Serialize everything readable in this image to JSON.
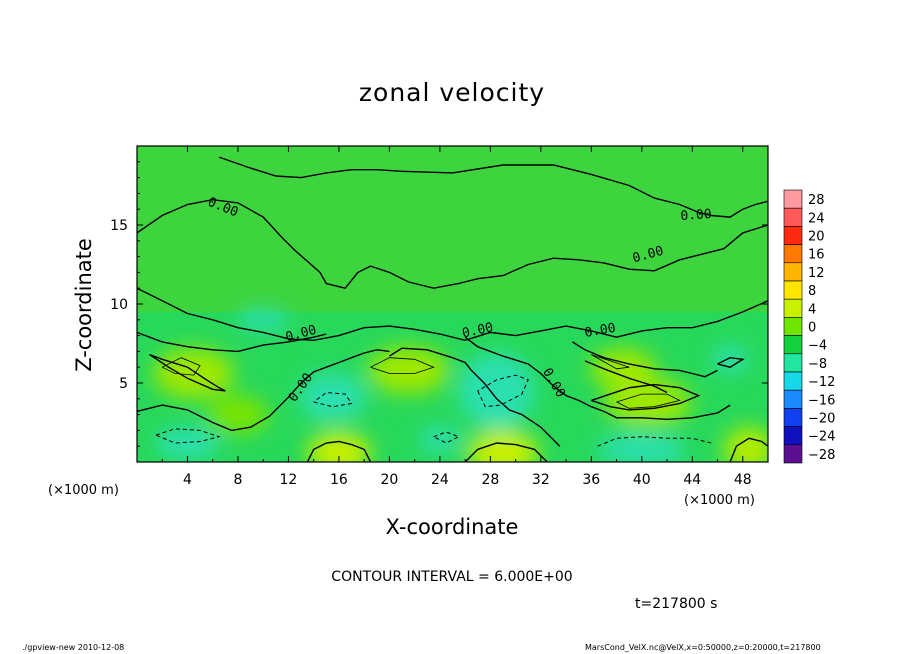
{
  "chart_data": {
    "type": "heatmap",
    "title": "zonal velocity",
    "xlabel": "X-coordinate",
    "ylabel": "Z-coordinate",
    "x_scale_label": "(×1000 m)",
    "x_ticks": [
      4,
      8,
      12,
      16,
      20,
      24,
      28,
      32,
      36,
      40,
      44,
      48
    ],
    "y_ticks": [
      5,
      10,
      15
    ],
    "xlim": [
      0,
      50
    ],
    "ylim": [
      0,
      20
    ],
    "colorbar": {
      "levels": [
        28,
        24,
        20,
        16,
        12,
        8,
        4,
        0,
        -4,
        -8,
        -12,
        -16,
        -20,
        -24,
        -28
      ],
      "colors": [
        "#ff9aa0",
        "#ff5a5a",
        "#ff2a10",
        "#ff7800",
        "#ffb400",
        "#ffe600",
        "#c8f000",
        "#6ee600",
        "#14d23c",
        "#20e6a0",
        "#18d8e8",
        "#1a8cff",
        "#1040f0",
        "#1010c0",
        "#5a1090"
      ]
    },
    "contour_labels": [
      "0.00",
      "0.00",
      "0.00",
      "0.00",
      "0.00",
      "0.00",
      "0.00",
      "0.00"
    ],
    "contour_interval": "CONTOUR INTERVAL = 6.000E+00",
    "time": "t=217800 s"
  },
  "footer": {
    "left": "./gpview-new  2010-12-08",
    "right": "MarsCond_VelX.nc@VelX,x=0:50000,z=0:20000,t=217800"
  }
}
